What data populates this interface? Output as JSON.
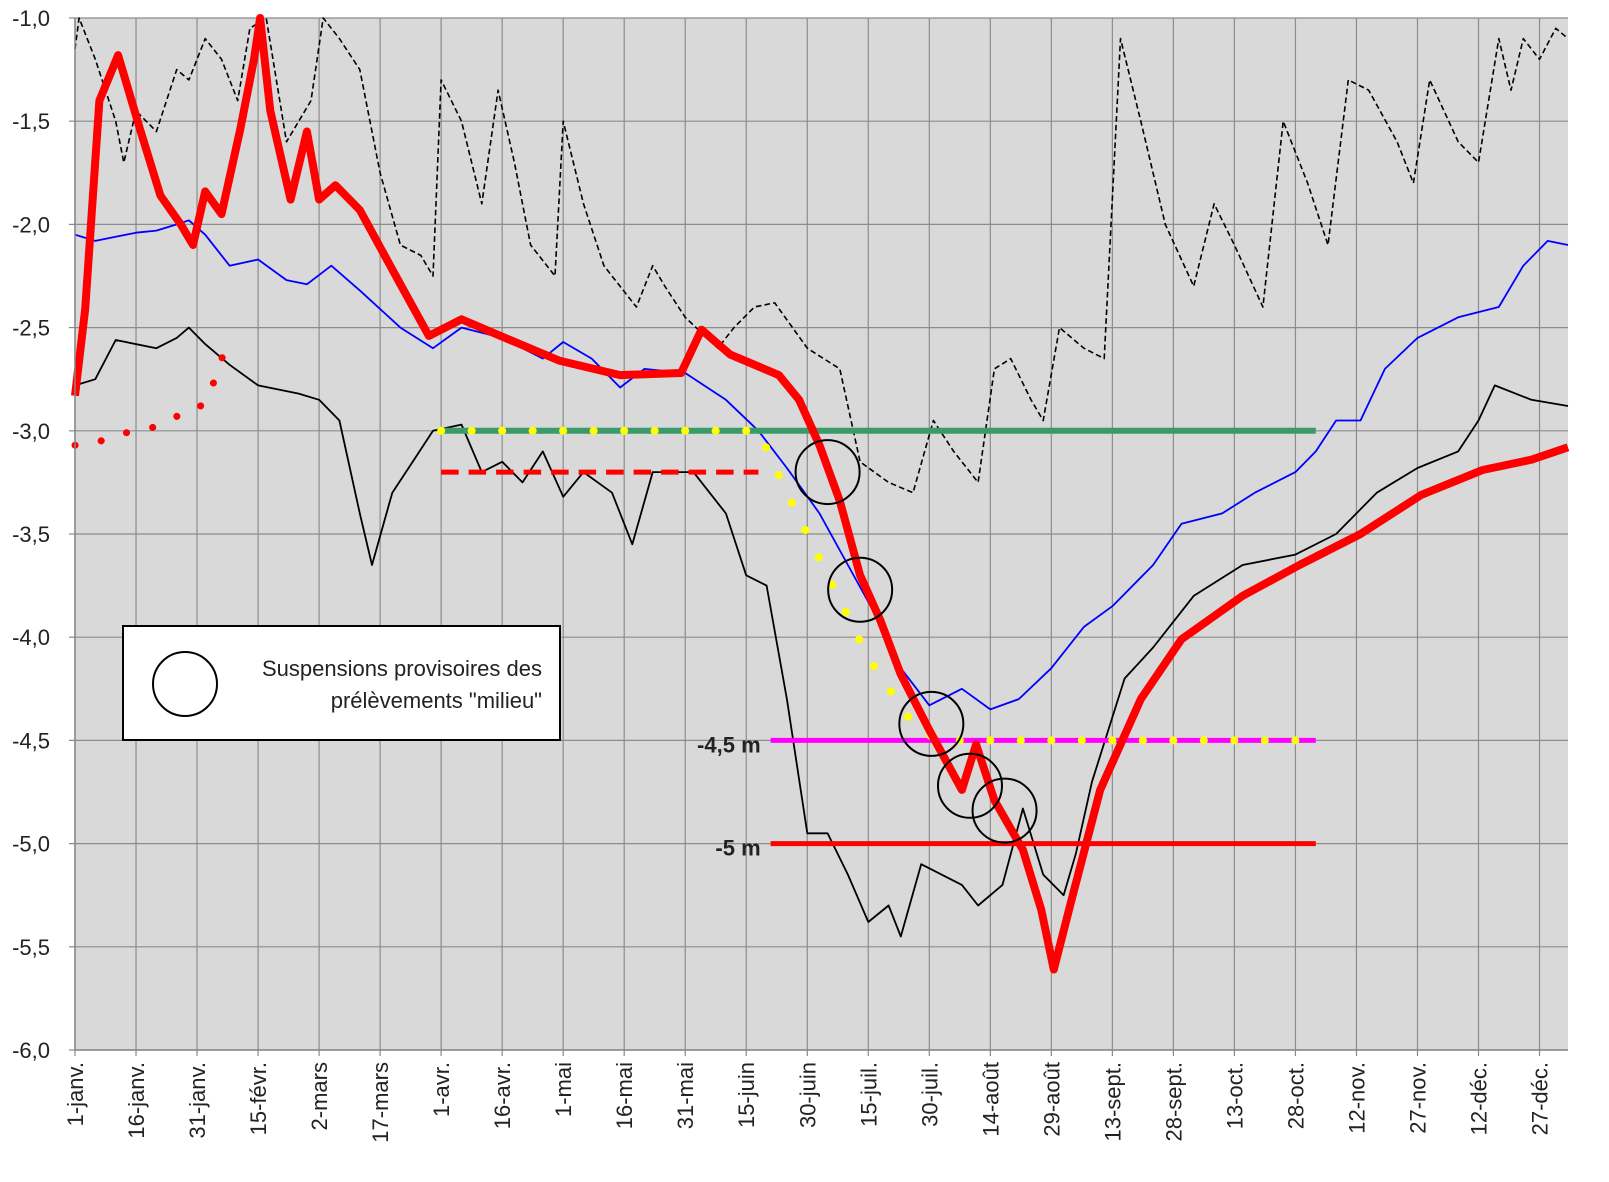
{
  "chart_data": {
    "type": "line",
    "xlim": [
      0,
      367
    ],
    "ylim": [
      -6.0,
      -1.0
    ],
    "xticks": [
      {
        "value": 0,
        "label": "1-janv."
      },
      {
        "value": 15,
        "label": "16-janv."
      },
      {
        "value": 30,
        "label": "31-janv."
      },
      {
        "value": 45,
        "label": "15-févr."
      },
      {
        "value": 60,
        "label": "2-mars"
      },
      {
        "value": 75,
        "label": "17-mars"
      },
      {
        "value": 90,
        "label": "1-avr."
      },
      {
        "value": 105,
        "label": "16-avr."
      },
      {
        "value": 120,
        "label": "1-mai"
      },
      {
        "value": 135,
        "label": "16-mai"
      },
      {
        "value": 150,
        "label": "31-mai"
      },
      {
        "value": 165,
        "label": "15-juin"
      },
      {
        "value": 180,
        "label": "30-juin"
      },
      {
        "value": 195,
        "label": "15-juil."
      },
      {
        "value": 210,
        "label": "30-juil."
      },
      {
        "value": 225,
        "label": "14-août"
      },
      {
        "value": 240,
        "label": "29-août"
      },
      {
        "value": 255,
        "label": "13-sept."
      },
      {
        "value": 270,
        "label": "28-sept."
      },
      {
        "value": 285,
        "label": "13-oct."
      },
      {
        "value": 300,
        "label": "28-oct."
      },
      {
        "value": 315,
        "label": "12-nov."
      },
      {
        "value": 330,
        "label": "27-nov."
      },
      {
        "value": 345,
        "label": "12-déc."
      },
      {
        "value": 360,
        "label": "27-déc."
      }
    ],
    "yticks": [
      {
        "value": -1.0,
        "label": "-1,0"
      },
      {
        "value": -1.5,
        "label": "-1,5"
      },
      {
        "value": -2.0,
        "label": "-2,0"
      },
      {
        "value": -2.5,
        "label": "-2,5"
      },
      {
        "value": -3.0,
        "label": "-3,0"
      },
      {
        "value": -3.5,
        "label": "-3,5"
      },
      {
        "value": -4.0,
        "label": "-4,0"
      },
      {
        "value": -4.5,
        "label": "-4,5"
      },
      {
        "value": -5.0,
        "label": "-5,0"
      },
      {
        "value": -5.5,
        "label": "-5,5"
      },
      {
        "value": -6.0,
        "label": "-6,0"
      }
    ],
    "grid": true,
    "series": [
      {
        "color": "#000000",
        "width": 1.6,
        "dash": "dashed",
        "x": [
          0,
          1,
          5,
          10,
          12,
          15,
          20,
          25,
          28,
          32,
          36,
          40,
          43,
          47,
          52,
          58,
          61,
          65,
          70,
          75,
          80,
          85,
          88,
          90,
          95,
          100,
          104,
          108,
          112,
          118,
          120,
          125,
          130,
          138,
          142,
          145,
          150,
          158,
          162,
          167,
          172,
          180,
          188,
          193,
          200,
          206,
          211,
          216,
          222,
          226,
          230,
          235,
          238,
          242,
          248,
          253,
          257,
          262,
          268,
          275,
          280,
          285,
          292,
          297,
          303,
          308,
          313,
          318,
          325,
          329,
          333,
          340,
          345,
          350,
          353,
          356,
          360,
          364,
          367
        ],
        "values": [
          -1.15,
          -1.0,
          -1.2,
          -1.5,
          -1.7,
          -1.45,
          -1.55,
          -1.25,
          -1.3,
          -1.1,
          -1.2,
          -1.4,
          -1.05,
          -1.0,
          -1.6,
          -1.4,
          -1.0,
          -1.1,
          -1.25,
          -1.75,
          -2.1,
          -2.15,
          -2.25,
          -1.3,
          -1.5,
          -1.9,
          -1.35,
          -1.7,
          -2.1,
          -2.25,
          -1.5,
          -1.9,
          -2.2,
          -2.4,
          -2.2,
          -2.3,
          -2.45,
          -2.6,
          -2.5,
          -2.4,
          -2.38,
          -2.6,
          -2.7,
          -3.15,
          -3.25,
          -3.3,
          -2.95,
          -3.1,
          -3.25,
          -2.7,
          -2.65,
          -2.85,
          -2.95,
          -2.5,
          -2.6,
          -2.65,
          -1.1,
          -1.5,
          -2.0,
          -2.3,
          -1.9,
          -2.1,
          -2.4,
          -1.5,
          -1.8,
          -2.1,
          -1.3,
          -1.35,
          -1.6,
          -1.8,
          -1.3,
          -1.6,
          -1.7,
          -1.1,
          -1.35,
          -1.1,
          -1.2,
          -1.05,
          -1.1
        ]
      },
      {
        "color": "#000000",
        "width": 1.8,
        "dash": "solid",
        "x": [
          0,
          5,
          10,
          20,
          25,
          28,
          32,
          38,
          45,
          55,
          60,
          65,
          70,
          73,
          78,
          83,
          88,
          95,
          100,
          105,
          110,
          115,
          120,
          125,
          132,
          137,
          142,
          147,
          152,
          160,
          165,
          170,
          175,
          180,
          185,
          190,
          195,
          200,
          203,
          208,
          213,
          218,
          222,
          228,
          233,
          238,
          243,
          246,
          250,
          258,
          265,
          275,
          287,
          300,
          310,
          320,
          330,
          340,
          345,
          349,
          358,
          367
        ],
        "values": [
          -2.78,
          -2.75,
          -2.56,
          -2.6,
          -2.55,
          -2.5,
          -2.58,
          -2.68,
          -2.78,
          -2.82,
          -2.85,
          -2.95,
          -3.4,
          -3.65,
          -3.3,
          -3.15,
          -3.0,
          -2.97,
          -3.2,
          -3.15,
          -3.25,
          -3.1,
          -3.32,
          -3.2,
          -3.3,
          -3.55,
          -3.2,
          -3.2,
          -3.2,
          -3.4,
          -3.7,
          -3.75,
          -4.3,
          -4.95,
          -4.95,
          -5.15,
          -5.38,
          -5.3,
          -5.45,
          -5.1,
          -5.15,
          -5.2,
          -5.3,
          -5.2,
          -4.83,
          -5.15,
          -5.25,
          -5.05,
          -4.7,
          -4.2,
          -4.05,
          -3.8,
          -3.65,
          -3.6,
          -3.5,
          -3.3,
          -3.18,
          -3.1,
          -2.95,
          -2.78,
          -2.85,
          -2.88
        ]
      },
      {
        "color": "#0000ff",
        "width": 1.8,
        "dash": "solid",
        "x": [
          0,
          5,
          10,
          15,
          20,
          25,
          28,
          32,
          38,
          45,
          52,
          57,
          63,
          70,
          80,
          88,
          95,
          105,
          115,
          120,
          127,
          134,
          140,
          150,
          160,
          168,
          175,
          183,
          190,
          197,
          203,
          210,
          218,
          225,
          232,
          240,
          248,
          255,
          265,
          272,
          282,
          290,
          300,
          305,
          310,
          316,
          322,
          330,
          340,
          350,
          356,
          362,
          367
        ],
        "values": [
          -2.05,
          -2.08,
          -2.06,
          -2.04,
          -2.03,
          -2.0,
          -1.98,
          -2.05,
          -2.2,
          -2.17,
          -2.27,
          -2.29,
          -2.2,
          -2.32,
          -2.5,
          -2.6,
          -2.5,
          -2.55,
          -2.65,
          -2.57,
          -2.65,
          -2.79,
          -2.7,
          -2.72,
          -2.85,
          -3.0,
          -3.18,
          -3.4,
          -3.65,
          -3.9,
          -4.15,
          -4.33,
          -4.25,
          -4.35,
          -4.3,
          -4.15,
          -3.95,
          -3.85,
          -3.65,
          -3.45,
          -3.4,
          -3.3,
          -3.2,
          -3.1,
          -2.95,
          -2.95,
          -2.7,
          -2.55,
          -2.45,
          -2.4,
          -2.2,
          -2.08,
          -2.1
        ]
      },
      {
        "color": "#3a9a6a",
        "width": 6,
        "dash": "solid",
        "x": [
          90,
          305
        ],
        "values": [
          -3.0,
          -3.0
        ]
      },
      {
        "color": "#ff0000",
        "width": 5,
        "dash": "dashed",
        "x": [
          90,
          168
        ],
        "values": [
          -3.2,
          -3.2
        ]
      },
      {
        "color": "#ff00ff",
        "width": 5,
        "dash": "solid",
        "x": [
          171,
          305
        ],
        "values": [
          -4.5,
          -4.5
        ],
        "label": "-4,5 m"
      },
      {
        "color": "#ff0000",
        "width": 5,
        "dash": "solid",
        "x": [
          171,
          305
        ],
        "values": [
          -5.0,
          -5.0
        ],
        "label": "-5 m"
      },
      {
        "color": "#ffff00",
        "width": 8,
        "dash": "dotted",
        "x": [
          90,
          168,
          175,
          185,
          195,
          207,
          213,
          305
        ],
        "values": [
          -3.0,
          -3.0,
          -3.3,
          -3.7,
          -4.1,
          -4.45,
          -4.5,
          -4.5
        ]
      },
      {
        "color": "#ff0000",
        "width": 7,
        "dash": "dotted",
        "x": [
          0,
          5,
          10,
          15,
          20,
          25,
          30,
          33,
          36,
          38
        ],
        "values": [
          -3.07,
          -3.06,
          -3.02,
          -3.0,
          -2.98,
          -2.93,
          -2.9,
          -2.83,
          -2.65,
          -2.6
        ]
      },
      {
        "color": "#ff0000",
        "width": 8,
        "dash": "solid",
        "x": [
          0,
          2.5,
          6,
          10.6,
          16,
          21,
          26,
          29,
          32,
          36,
          40.6,
          44,
          45.5,
          48,
          53,
          57,
          60,
          64,
          70,
          80,
          87,
          95,
          104.6,
          119,
          134,
          149,
          154,
          161,
          173,
          178,
          183,
          188,
          193,
          198,
          203,
          210,
          218,
          221.5,
          226,
          233,
          237.5,
          240.6,
          245,
          252,
          262,
          272,
          287,
          301,
          316,
          331,
          346,
          358,
          367
        ],
        "values": [
          -2.83,
          -2.41,
          -1.4,
          -1.18,
          -1.54,
          -1.86,
          -2.0,
          -2.1,
          -1.84,
          -1.95,
          -1.54,
          -1.2,
          -1.0,
          -1.45,
          -1.88,
          -1.55,
          -1.88,
          -1.81,
          -1.93,
          -2.29,
          -2.54,
          -2.46,
          -2.54,
          -2.66,
          -2.73,
          -2.72,
          -2.51,
          -2.63,
          -2.73,
          -2.85,
          -3.07,
          -3.34,
          -3.7,
          -3.92,
          -4.18,
          -4.45,
          -4.74,
          -4.52,
          -4.79,
          -5.03,
          -5.32,
          -5.61,
          -5.27,
          -4.74,
          -4.3,
          -4.01,
          -3.8,
          -3.65,
          -3.5,
          -3.31,
          -3.19,
          -3.14,
          -3.08
        ]
      },
      {
        "color": "#000000",
        "width": 2,
        "dash": "circles",
        "x": [
          185,
          193,
          210.5,
          220,
          228.5
        ],
        "values": [
          -3.2,
          -3.77,
          -4.42,
          -4.72,
          -4.84
        ]
      }
    ],
    "legend": {
      "text": [
        "Suspensions provisoires des",
        "prélèvements \"milieu\""
      ]
    }
  }
}
